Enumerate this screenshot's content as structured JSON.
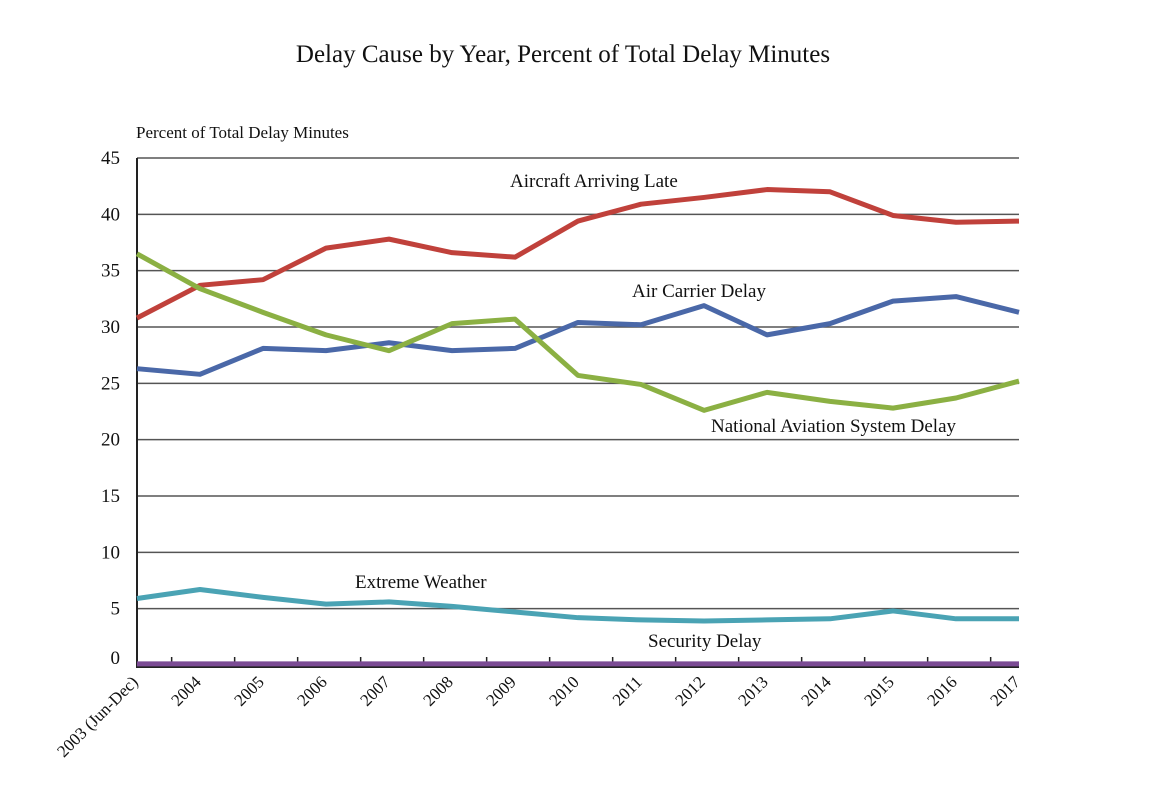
{
  "chart_data": {
    "type": "line",
    "title": "Delay Cause by Year, Percent of Total Delay Minutes",
    "ylabel": "Percent of Total Delay Minutes",
    "xlabel": "",
    "ylim": [
      0,
      45
    ],
    "yticks": [
      "0",
      "5",
      "10",
      "15",
      "20",
      "25",
      "30",
      "35",
      "40",
      "45"
    ],
    "grid": true,
    "legend": "inline labels",
    "categories": [
      "2003 (Jun-Dec)",
      "2004",
      "2005",
      "2006",
      "2007",
      "2008",
      "2009",
      "2010",
      "2011",
      "2012",
      "2013",
      "2014",
      "2015",
      "2016",
      "2017"
    ],
    "series": [
      {
        "name": "Aircraft Arriving Late",
        "color": "#c0413b",
        "values": [
          30.8,
          33.7,
          34.2,
          37.0,
          37.8,
          36.6,
          36.2,
          39.4,
          40.9,
          41.5,
          42.2,
          42.0,
          39.9,
          39.3,
          39.4
        ]
      },
      {
        "name": "Air Carrier Delay",
        "color": "#4a68a8",
        "values": [
          26.3,
          25.8,
          28.1,
          27.9,
          28.6,
          27.9,
          28.1,
          30.4,
          30.2,
          31.9,
          29.3,
          30.3,
          32.3,
          32.7,
          31.3
        ]
      },
      {
        "name": "National Aviation System Delay",
        "color": "#8bb043",
        "values": [
          36.5,
          33.4,
          31.3,
          29.3,
          27.9,
          30.3,
          30.7,
          25.7,
          24.9,
          22.6,
          24.2,
          23.4,
          22.8,
          23.7,
          25.2
        ]
      },
      {
        "name": "Extreme Weather",
        "color": "#4aa3b4",
        "values": [
          5.9,
          6.7,
          6.0,
          5.4,
          5.6,
          5.2,
          4.7,
          4.2,
          4.0,
          3.9,
          4.0,
          4.1,
          4.8,
          4.1,
          4.1
        ]
      },
      {
        "name": "Security Delay",
        "color": "#7b4b94",
        "values": [
          0.1,
          0.1,
          0.1,
          0.1,
          0.1,
          0.1,
          0.1,
          0.1,
          0.1,
          0.1,
          0.1,
          0.1,
          0.1,
          0.1,
          0.1
        ]
      }
    ]
  }
}
